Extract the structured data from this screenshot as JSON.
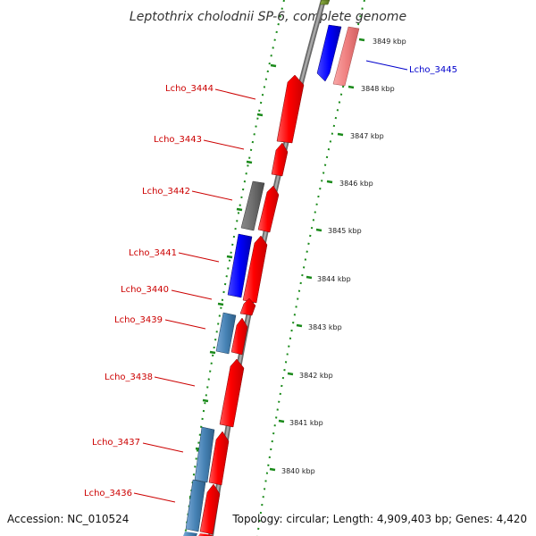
{
  "title": "Leptothrix cholodnii SP-6, complete genome",
  "footer": {
    "accession": "Accession: NC_010524",
    "topology": "Topology: circular; Length: 4,909,403 bp; Genes: 4,420"
  },
  "colors": {
    "forward_cds": "#ff0000",
    "reverse_cds": "#0000ff",
    "steelblue_cds": "#4682b4",
    "gray_cds": "#6e6e6e",
    "pink_cds": "#f08080",
    "olive_cds": "#6b8e23",
    "backbone": "#888888",
    "ticks": "#1a8a1a",
    "label_red": "#cc0000",
    "label_blue": "#0000cc"
  },
  "ticks": [
    {
      "label": "3849 kbp"
    },
    {
      "label": "3848 kbp"
    },
    {
      "label": "3847 kbp"
    },
    {
      "label": "3846 kbp"
    },
    {
      "label": "3845 kbp"
    },
    {
      "label": "3844 kbp"
    },
    {
      "label": "3843 kbp"
    },
    {
      "label": "3842 kbp"
    },
    {
      "label": "3841 kbp"
    },
    {
      "label": "3840 kbp"
    }
  ],
  "gene_labels": [
    {
      "text": "Lcho_3445",
      "color": "blue"
    },
    {
      "text": "Lcho_3444",
      "color": "red"
    },
    {
      "text": "Lcho_3443",
      "color": "red"
    },
    {
      "text": "Lcho_3442",
      "color": "red"
    },
    {
      "text": "Lcho_3441",
      "color": "red"
    },
    {
      "text": "Lcho_3440",
      "color": "red"
    },
    {
      "text": "Lcho_3439",
      "color": "red"
    },
    {
      "text": "Lcho_3438",
      "color": "red"
    },
    {
      "text": "Lcho_3437",
      "color": "red"
    },
    {
      "text": "Lcho_3436",
      "color": "red"
    }
  ]
}
